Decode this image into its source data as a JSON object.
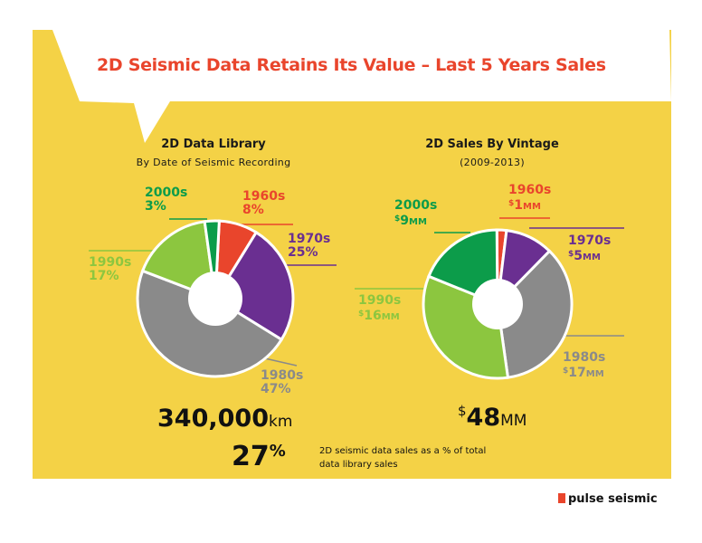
{
  "title": "2D Seismic Data Retains Its Value – Last 5 Years Sales",
  "colors": {
    "background": "#f4d246",
    "title": "#e9452c",
    "1960s": "#e9452c",
    "1970s": "#6a2f91",
    "1980s": "#8a8a8a",
    "1990s": "#8cc63f",
    "2000s": "#0c9c4a"
  },
  "charts": {
    "library": {
      "title": "2D Data Library",
      "subtitle": "By Date of Seismic Recording",
      "total_value": "340,000",
      "total_unit": "km",
      "labels": {
        "s2000": {
          "name": "2000s",
          "value": "3%"
        },
        "s1960": {
          "name": "1960s",
          "value": "8%"
        },
        "s1970": {
          "name": "1970s",
          "value": "25%"
        },
        "s1990": {
          "name": "1990s",
          "value": "17%"
        },
        "s1980": {
          "name": "1980s",
          "value": "47%"
        }
      }
    },
    "sales": {
      "title": "2D Sales By Vintage",
      "subtitle": "(2009-2013)",
      "total_currency": "$",
      "total_value": "48",
      "total_unit": "MM",
      "labels": {
        "s2000": {
          "name": "2000s",
          "cur": "$",
          "num": "9",
          "unit": "MM"
        },
        "s1960": {
          "name": "1960s",
          "cur": "$",
          "num": "1",
          "unit": "MM"
        },
        "s1970": {
          "name": "1970s",
          "cur": "$",
          "num": "5",
          "unit": "MM"
        },
        "s1990": {
          "name": "1990s",
          "cur": "$",
          "num": "16",
          "unit": "MM"
        },
        "s1980": {
          "name": "1980s",
          "cur": "$",
          "num": "17",
          "unit": "MM"
        }
      }
    }
  },
  "footer": {
    "percent_value": "27",
    "percent_sign": "%",
    "caption": "2D seismic data sales as a % of total data library sales"
  },
  "logo": {
    "text": "pulse seismic"
  },
  "chart_data": [
    {
      "type": "pie",
      "title": "2D Data Library",
      "subtitle": "By Date of Seismic Recording",
      "unit": "%",
      "categories": [
        "1960s",
        "1970s",
        "1980s",
        "1990s",
        "2000s"
      ],
      "values": [
        8,
        25,
        47,
        17,
        3
      ]
    },
    {
      "type": "pie",
      "title": "2D Sales By Vintage",
      "subtitle": "(2009-2013)",
      "unit": "$MM",
      "categories": [
        "1960s",
        "1970s",
        "1980s",
        "1990s",
        "2000s"
      ],
      "values": [
        1,
        5,
        17,
        16,
        9
      ]
    }
  ]
}
